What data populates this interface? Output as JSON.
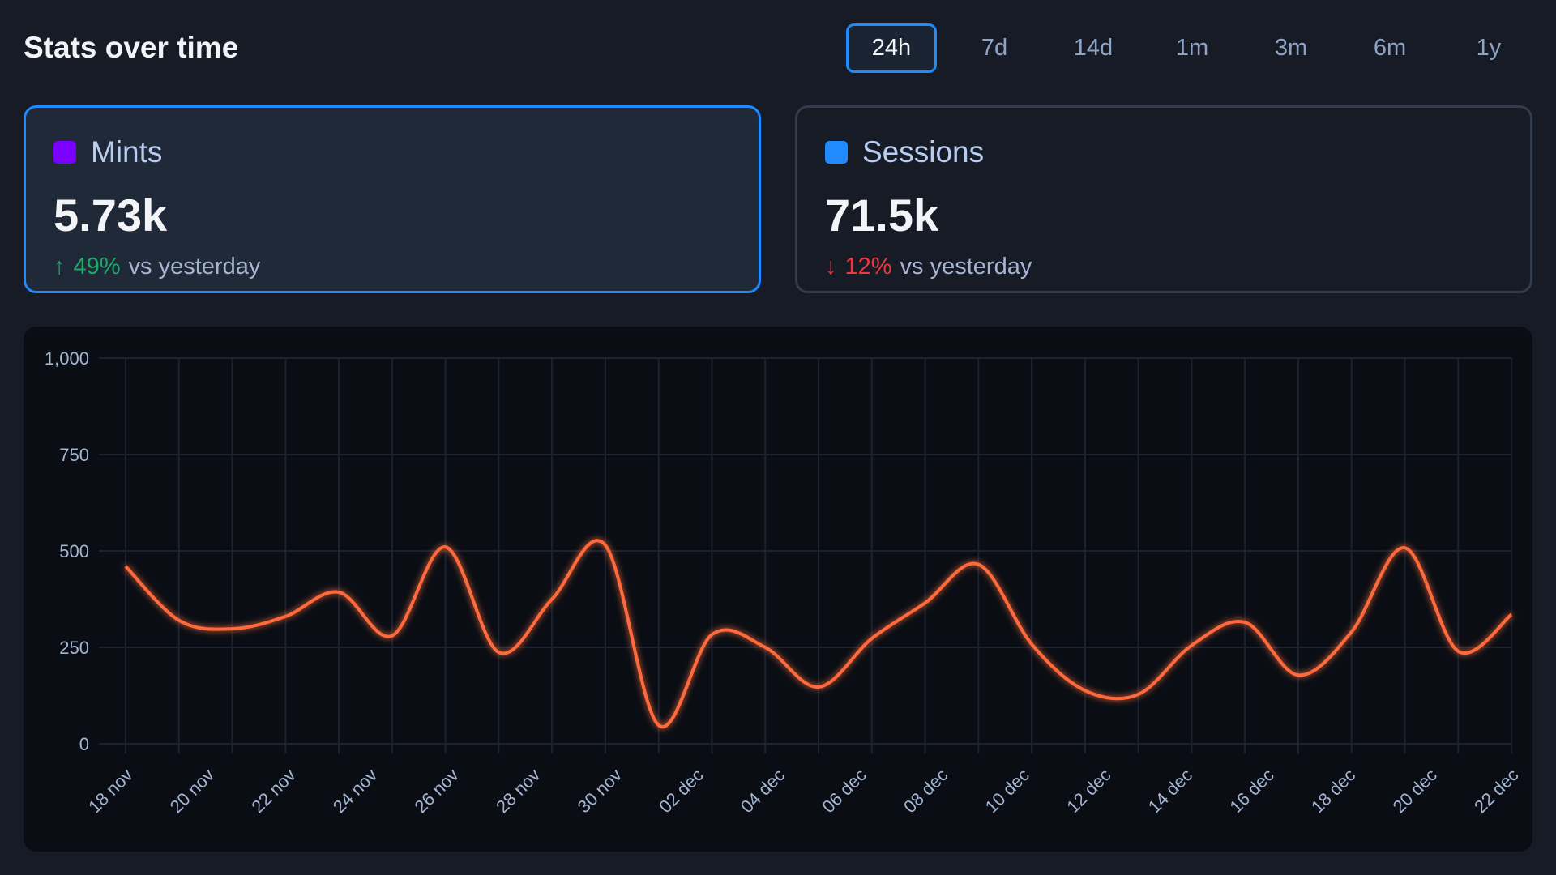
{
  "header": {
    "title": "Stats over time"
  },
  "tabs": [
    {
      "label": "24h",
      "active": true
    },
    {
      "label": "7d"
    },
    {
      "label": "14d"
    },
    {
      "label": "1m"
    },
    {
      "label": "3m"
    },
    {
      "label": "6m"
    },
    {
      "label": "1y"
    }
  ],
  "cards": [
    {
      "label": "Mints",
      "value": "5.73k",
      "delta": "49%",
      "direction": "up",
      "arrow": "↑",
      "suffix": "vs yesterday",
      "color": "#7a00ff",
      "active": true
    },
    {
      "label": "Sessions",
      "value": "71.5k",
      "delta": "12%",
      "direction": "down",
      "arrow": "↓",
      "suffix": "vs yesterday",
      "color": "#1f8bff",
      "active": false
    }
  ],
  "colors": {
    "line": "#ff6a3d",
    "up": "#1fa86b",
    "down": "#f0363d",
    "accent": "#1f8bff"
  },
  "chart_data": {
    "type": "line",
    "ylim": [
      0,
      1000
    ],
    "y_ticks": [
      "0",
      "250",
      "500",
      "750",
      "1,000"
    ],
    "y_tick_values": [
      0,
      250,
      500,
      750,
      1000
    ],
    "x_tick_labels": [
      "18 nov",
      "20 nov",
      "22 nov",
      "24 nov",
      "26 nov",
      "28 nov",
      "30 nov",
      "02 dec",
      "04 dec",
      "06 dec",
      "08 dec",
      "10 dec",
      "12 dec",
      "14 dec",
      "16 dec",
      "18 dec",
      "20 dec",
      "22 dec"
    ],
    "grid": true,
    "smooth": true,
    "series": [
      {
        "values": [
          460,
          320,
          298,
          330,
          393,
          280,
          510,
          237,
          375,
          515,
          48,
          283,
          250,
          147,
          273,
          365,
          465,
          258,
          138,
          128,
          255,
          315,
          178,
          290,
          508,
          240,
          335
        ]
      }
    ]
  }
}
